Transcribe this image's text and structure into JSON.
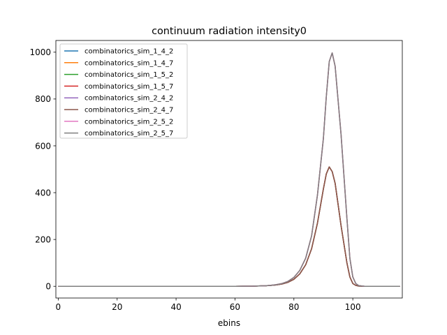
{
  "chart_data": {
    "type": "line",
    "title": "continuum radiation intensity0",
    "xlabel": "ebins",
    "ylabel": "",
    "xlim": [
      -0.8,
      116.8
    ],
    "ylim": [
      -50,
      1050
    ],
    "xticks": [
      0,
      20,
      40,
      60,
      80,
      100
    ],
    "yticks": [
      0,
      200,
      400,
      600,
      800,
      1000
    ],
    "grid": false,
    "legend_position": "upper-left",
    "x": [
      0,
      10,
      20,
      30,
      40,
      50,
      60,
      66,
      70,
      72,
      74,
      76,
      78,
      80,
      82,
      84,
      86,
      88,
      90,
      91,
      92,
      93,
      94,
      96,
      98,
      99,
      100,
      101,
      102,
      104,
      106,
      110,
      116
    ],
    "series": [
      {
        "name": "combinatorics_sim_1_4_2",
        "color": "#1f77b4",
        "values": [
          0,
          0,
          0,
          0,
          0,
          0,
          0,
          0.5,
          2,
          3.5,
          6,
          10,
          17,
          30,
          53,
          92,
          160,
          270,
          415,
          480,
          510,
          490,
          440,
          260,
          100,
          40,
          12,
          4,
          1,
          0,
          0,
          0,
          0
        ]
      },
      {
        "name": "combinatorics_sim_1_4_7",
        "color": "#ff7f0e",
        "values": [
          0,
          0,
          0,
          0,
          0,
          0,
          0,
          0.5,
          2,
          4,
          7,
          12,
          21,
          38,
          68,
          120,
          215,
          390,
          630,
          810,
          960,
          997,
          940,
          650,
          290,
          120,
          40,
          12,
          3,
          0,
          0,
          0,
          0
        ]
      },
      {
        "name": "combinatorics_sim_1_5_2",
        "color": "#2ca02c",
        "values": [
          0,
          0,
          0,
          0,
          0,
          0,
          0,
          0.5,
          2,
          3.5,
          6,
          10,
          17,
          30,
          53,
          92,
          160,
          270,
          415,
          480,
          510,
          490,
          440,
          260,
          100,
          40,
          12,
          4,
          1,
          0,
          0,
          0,
          0
        ]
      },
      {
        "name": "combinatorics_sim_1_5_7",
        "color": "#d62728",
        "values": [
          0,
          0,
          0,
          0,
          0,
          0,
          0,
          0.5,
          2,
          3.5,
          6,
          10,
          17,
          30,
          53,
          92,
          160,
          270,
          415,
          480,
          510,
          490,
          440,
          260,
          100,
          40,
          12,
          4,
          1,
          0,
          0,
          0,
          0
        ]
      },
      {
        "name": "combinatorics_sim_2_4_2",
        "color": "#9467bd",
        "values": [
          0,
          0,
          0,
          0,
          0,
          0,
          0,
          0.5,
          2,
          4,
          7,
          12,
          21,
          38,
          68,
          120,
          215,
          390,
          630,
          810,
          960,
          997,
          940,
          650,
          290,
          120,
          40,
          12,
          3,
          0,
          0,
          0,
          0
        ]
      },
      {
        "name": "combinatorics_sim_2_4_7",
        "color": "#8c564b",
        "values": [
          0,
          0,
          0,
          0,
          0,
          0,
          0,
          0.5,
          2,
          3.5,
          6,
          10,
          17,
          30,
          53,
          92,
          160,
          270,
          415,
          480,
          510,
          490,
          440,
          260,
          100,
          40,
          12,
          4,
          1,
          0,
          0,
          0,
          0
        ]
      },
      {
        "name": "combinatorics_sim_2_5_2",
        "color": "#e377c2",
        "values": [
          0,
          0,
          0,
          0,
          0,
          0,
          0,
          0.5,
          2,
          4,
          7,
          12,
          21,
          38,
          68,
          120,
          215,
          390,
          630,
          810,
          960,
          997,
          940,
          650,
          290,
          120,
          40,
          12,
          3,
          0,
          0,
          0,
          0
        ]
      },
      {
        "name": "combinatorics_sim_2_5_7",
        "color": "#7f7f7f",
        "values": [
          0,
          0,
          0,
          0,
          0,
          0,
          0,
          0.5,
          2,
          4,
          7,
          12,
          21,
          38,
          68,
          120,
          215,
          390,
          630,
          810,
          960,
          997,
          940,
          650,
          290,
          120,
          40,
          12,
          3,
          0,
          0,
          0,
          0
        ]
      }
    ]
  }
}
